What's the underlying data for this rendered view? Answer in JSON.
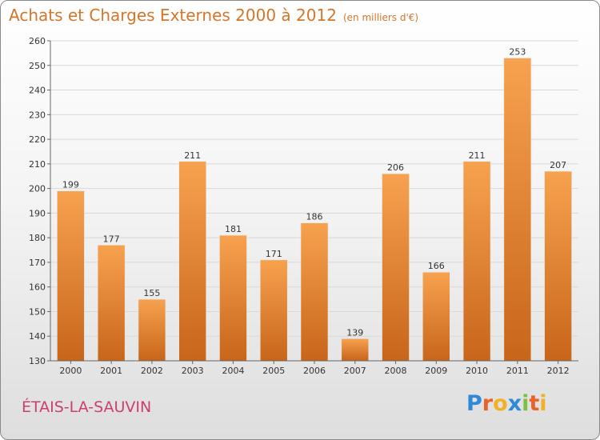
{
  "header": {
    "title": "Achats et Charges Externes 2000 à 2012",
    "subtitle": "(en milliers d'€)"
  },
  "footer": {
    "commune": "ÉTAIS-LA-SAUVIN",
    "logo_letters": [
      "P",
      "r",
      "o",
      "x",
      "i",
      "t",
      "i"
    ],
    "logo_colors": [
      "#2e8ad8",
      "#e8622a",
      "#f0b224",
      "#2e8ad8",
      "#7cc242",
      "#e8622a",
      "#f0b224"
    ]
  },
  "colors": {
    "bar_top": "#f7a24f",
    "bar_bottom": "#c8651a",
    "title": "#d4762a",
    "commune": "#cc3f6c"
  },
  "chart_data": {
    "type": "bar",
    "categories": [
      "2000",
      "2001",
      "2002",
      "2003",
      "2004",
      "2005",
      "2006",
      "2007",
      "2008",
      "2009",
      "2010",
      "2011",
      "2012"
    ],
    "values": [
      199,
      177,
      155,
      211,
      181,
      171,
      186,
      139,
      206,
      166,
      211,
      253,
      207
    ],
    "title": "Achats et Charges Externes 2000 à 2012",
    "xlabel": "",
    "ylabel": "",
    "ylim": [
      130,
      260
    ],
    "yticks": [
      130,
      140,
      150,
      160,
      170,
      180,
      190,
      200,
      210,
      220,
      230,
      240,
      250,
      260
    ],
    "grid": true,
    "data_labels": true
  }
}
